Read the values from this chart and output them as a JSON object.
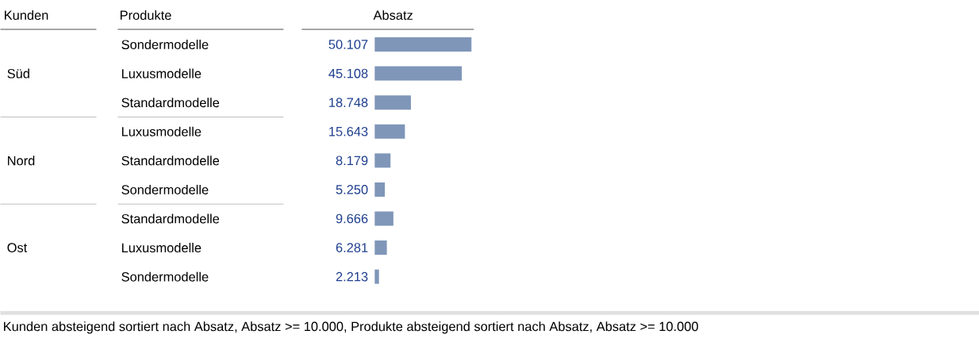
{
  "chart_data": {
    "type": "bar",
    "orientation": "horizontal",
    "xlabel": "Absatz",
    "ylabel": "Produkte",
    "categories": [
      "Sondermodelle",
      "Luxusmodelle",
      "Standardmodelle",
      "Luxusmodelle",
      "Standardmodelle",
      "Sondermodelle",
      "Standardmodelle",
      "Luxusmodelle",
      "Sondermodelle"
    ],
    "values": [
      50107,
      45108,
      18748,
      15643,
      8179,
      5250,
      9666,
      6281,
      2213
    ],
    "value_labels": [
      "50.107",
      "45.108",
      "18.748",
      "15.643",
      "8.179",
      "5.250",
      "9.666",
      "6.281",
      "2.213"
    ],
    "color": "#7f96b9",
    "annotations": [
      "Kunden",
      "Süd",
      "Nord",
      "Ost",
      "Kunden absteigend sortiert nach Absatz, Absatz >= 10.000, Produkte absteigend sortiert nach Absatz, Absatz >= 10.000"
    ]
  }
}
